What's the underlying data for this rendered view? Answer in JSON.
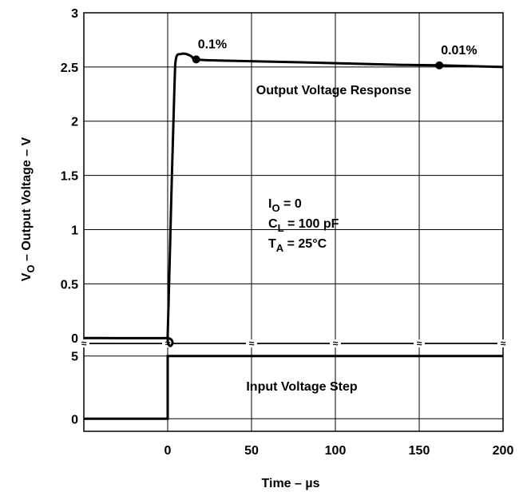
{
  "chart_data": [
    {
      "type": "line",
      "panel": "output",
      "title": "",
      "xlabel": "Time – µs",
      "ylabel": "VO – Output Voltage – V",
      "ylabel_parts": {
        "v": "V",
        "sub": "O",
        "rest": " – Output Voltage – V"
      },
      "x_ticks": [
        "0",
        "50",
        "100",
        "150",
        "200"
      ],
      "x_tick_values": [
        0,
        50,
        100,
        150,
        200
      ],
      "xlim": [
        -50,
        200
      ],
      "ylim": [
        -0.05,
        3
      ],
      "y_ticks": [
        "0",
        "0.5",
        "1",
        "1.5",
        "2",
        "2.5",
        "3"
      ],
      "y_tick_values": [
        0,
        0.5,
        1,
        1.5,
        2,
        2.5,
        3
      ],
      "grid": true,
      "series": [
        {
          "x": [
            -50,
            -1,
            0,
            2,
            4,
            5,
            8,
            11,
            14,
            17,
            30,
            60,
            100,
            140,
            162,
            200
          ],
          "y": [
            0,
            0,
            0.02,
            1.2,
            2.3,
            2.58,
            2.62,
            2.62,
            2.6,
            2.57,
            2.56,
            2.55,
            2.535,
            2.52,
            2.515,
            2.5
          ]
        }
      ],
      "markers": [
        {
          "x": 17,
          "y": 2.57,
          "label": "0.1%"
        },
        {
          "x": 162,
          "y": 2.515,
          "label": "0.01%"
        }
      ],
      "annotations": {
        "curve_label": "Output Voltage Response",
        "conditions": [
          {
            "main": "I",
            "sub": "O",
            "rest": " = 0"
          },
          {
            "main": "C",
            "sub": "L",
            "rest": " = 100 pF"
          },
          {
            "main": "T",
            "sub": "A",
            "rest": " = 25°C"
          }
        ]
      },
      "axis_break": "≈"
    },
    {
      "type": "line",
      "panel": "input",
      "title": "",
      "xlim": [
        -50,
        200
      ],
      "ylim": [
        -1,
        6
      ],
      "y_ticks": [
        "0",
        "5"
      ],
      "y_tick_values": [
        0,
        5
      ],
      "grid": true,
      "series": [
        {
          "x": [
            -50,
            0,
            0,
            200
          ],
          "y": [
            0,
            0,
            5,
            5
          ]
        }
      ],
      "annotations": {
        "curve_label": "Input Voltage Step"
      }
    }
  ]
}
